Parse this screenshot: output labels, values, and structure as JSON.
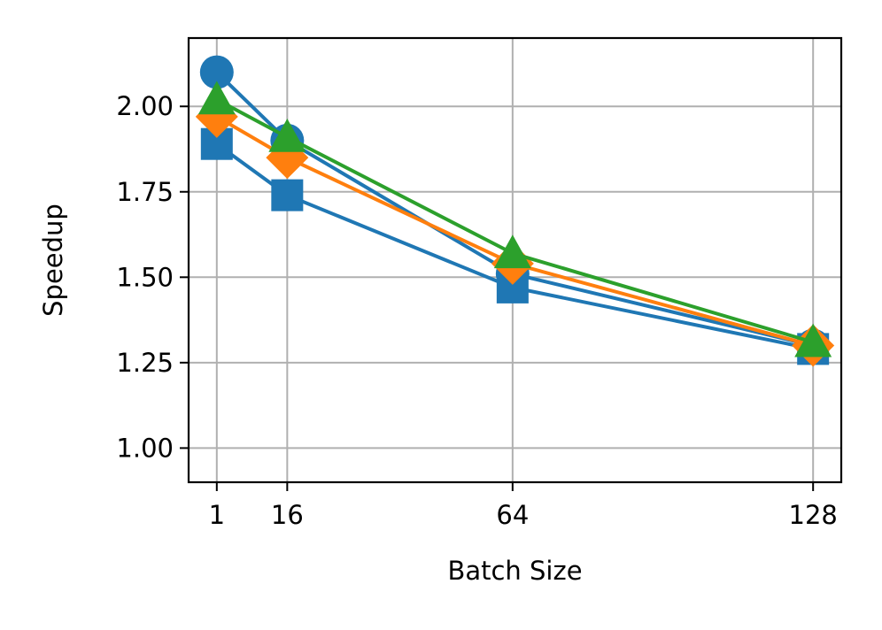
{
  "chart_data": {
    "type": "line",
    "title": "",
    "xlabel": "Batch Size",
    "ylabel": "Speedup",
    "x": [
      1,
      16,
      64,
      128
    ],
    "xticks": [
      "1",
      "16",
      "64",
      "128"
    ],
    "yticks": [
      "1.00",
      "1.25",
      "1.50",
      "1.75",
      "2.00"
    ],
    "ytick_values": [
      1.0,
      1.25,
      1.5,
      1.75,
      2.0
    ],
    "xlim": [
      -5,
      134
    ],
    "ylim": [
      0.9,
      2.2
    ],
    "grid": true,
    "legend": "none",
    "series": [
      {
        "values": [
          2.1,
          1.9,
          1.51,
          1.3
        ],
        "color": "#1f77b4",
        "marker": "circle"
      },
      {
        "values": [
          1.89,
          1.74,
          1.47,
          1.29
        ],
        "color": "#1f77b4",
        "marker": "square"
      },
      {
        "values": [
          1.97,
          1.85,
          1.54,
          1.3
        ],
        "color": "#ff7f0e",
        "marker": "diamond"
      },
      {
        "values": [
          2.02,
          1.91,
          1.57,
          1.31
        ],
        "color": "#2ca02c",
        "marker": "triangle"
      }
    ]
  }
}
